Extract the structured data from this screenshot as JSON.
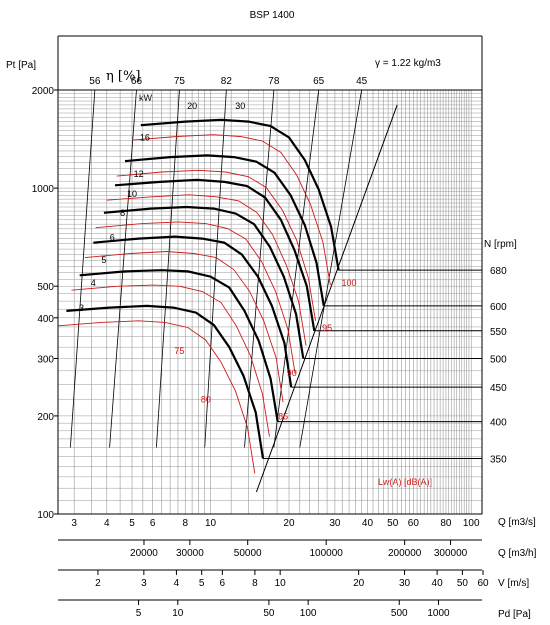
{
  "chart_data": {
    "type": "line",
    "title": "BSP 1400",
    "density_note": "γ = 1.22 kg/m3",
    "ylabel": "Pt [Pa]",
    "yscale": "log",
    "ylim": [
      100,
      2000
    ],
    "y_ticks": [
      100,
      200,
      300,
      400,
      500,
      1000,
      2000
    ],
    "xscale": "log",
    "x_axes": [
      {
        "label": "Q [m3/s]",
        "range": [
          2.6,
          110
        ],
        "ticks": [
          "3",
          "4",
          "5",
          "6",
          "8",
          "10",
          "20",
          "30",
          "40",
          "50",
          "60",
          "80",
          "100"
        ],
        "tick_values": [
          3,
          4,
          5,
          6,
          8,
          10,
          20,
          30,
          40,
          50,
          60,
          80,
          100
        ]
      },
      {
        "label": "Q [m3/h]",
        "ticks": [
          "20000",
          "30000",
          "50000",
          "100000",
          "200000",
          "300000"
        ],
        "tick_values": [
          20000,
          30000,
          50000,
          100000,
          200000,
          300000
        ]
      },
      {
        "label": "V [m/s]",
        "ticks": [
          "2",
          "3",
          "4",
          "5",
          "6",
          "8",
          "10",
          "20",
          "30",
          "40",
          "50",
          "60"
        ],
        "tick_values": [
          2,
          3,
          4,
          5,
          6,
          8,
          10,
          20,
          30,
          40,
          50,
          60
        ]
      },
      {
        "label": "Pd [Pa]",
        "ticks": [
          "5",
          "10",
          "50",
          "100",
          "500",
          "1000"
        ],
        "tick_values": [
          5,
          10,
          50,
          100,
          500,
          1000
        ]
      }
    ],
    "efficiency": {
      "label": "η [%]",
      "values": [
        "56",
        "66",
        "75",
        "82",
        "78",
        "65",
        "45"
      ]
    },
    "speed": {
      "label": "N [rpm]",
      "ticks": [
        "680",
        "600",
        "550",
        "500",
        "450",
        "400",
        "350"
      ]
    },
    "power": {
      "unit": "kW",
      "values": [
        "3",
        "4",
        "5",
        "6",
        "8",
        "10",
        "12",
        "16",
        "20",
        "30"
      ]
    },
    "sound": {
      "label": "Lw(A) [dB(A)]",
      "values": [
        "75",
        "80",
        "85",
        "90",
        "95",
        "100"
      ]
    },
    "series": [
      {
        "name": "680",
        "x": [
          5.4,
          8,
          11,
          14,
          17,
          20,
          23,
          26,
          29,
          31
        ],
        "y": [
          1560,
          1600,
          1620,
          1600,
          1550,
          1430,
          1220,
          990,
          760,
          560
        ]
      },
      {
        "name": "600",
        "x": [
          4.7,
          7,
          9.7,
          12.3,
          15,
          17.6,
          20.3,
          23,
          25.5,
          27.2
        ],
        "y": [
          1210,
          1245,
          1260,
          1245,
          1205,
          1115,
          950,
          770,
          590,
          435
        ]
      },
      {
        "name": "550",
        "x": [
          4.3,
          6.4,
          8.9,
          11.3,
          13.8,
          16.2,
          18.6,
          21,
          23.4,
          25
        ],
        "y": [
          1020,
          1045,
          1060,
          1045,
          1015,
          935,
          800,
          645,
          500,
          365
        ]
      },
      {
        "name": "500",
        "x": [
          3.9,
          5.9,
          8.1,
          10.3,
          12.5,
          14.7,
          16.9,
          19.1,
          21.3,
          22.7
        ],
        "y": [
          840,
          865,
          875,
          865,
          835,
          775,
          660,
          535,
          410,
          300
        ]
      },
      {
        "name": "450",
        "x": [
          3.55,
          5.3,
          7.3,
          9.3,
          11.3,
          13.2,
          15.2,
          17.2,
          19.2,
          20.4
        ],
        "y": [
          680,
          700,
          710,
          700,
          680,
          625,
          535,
          435,
          335,
          245
        ]
      },
      {
        "name": "400",
        "x": [
          3.15,
          4.7,
          6.5,
          8.2,
          10,
          11.8,
          13.5,
          15.3,
          17,
          18.1
        ],
        "y": [
          540,
          555,
          560,
          555,
          535,
          495,
          420,
          340,
          260,
          192
        ]
      },
      {
        "name": "350",
        "x": [
          2.8,
          4.1,
          5.7,
          7.2,
          8.8,
          10.3,
          11.8,
          13.4,
          14.9,
          15.9
        ],
        "y": [
          420,
          430,
          435,
          430,
          415,
          380,
          325,
          265,
          205,
          148
        ]
      }
    ],
    "grid": true
  }
}
